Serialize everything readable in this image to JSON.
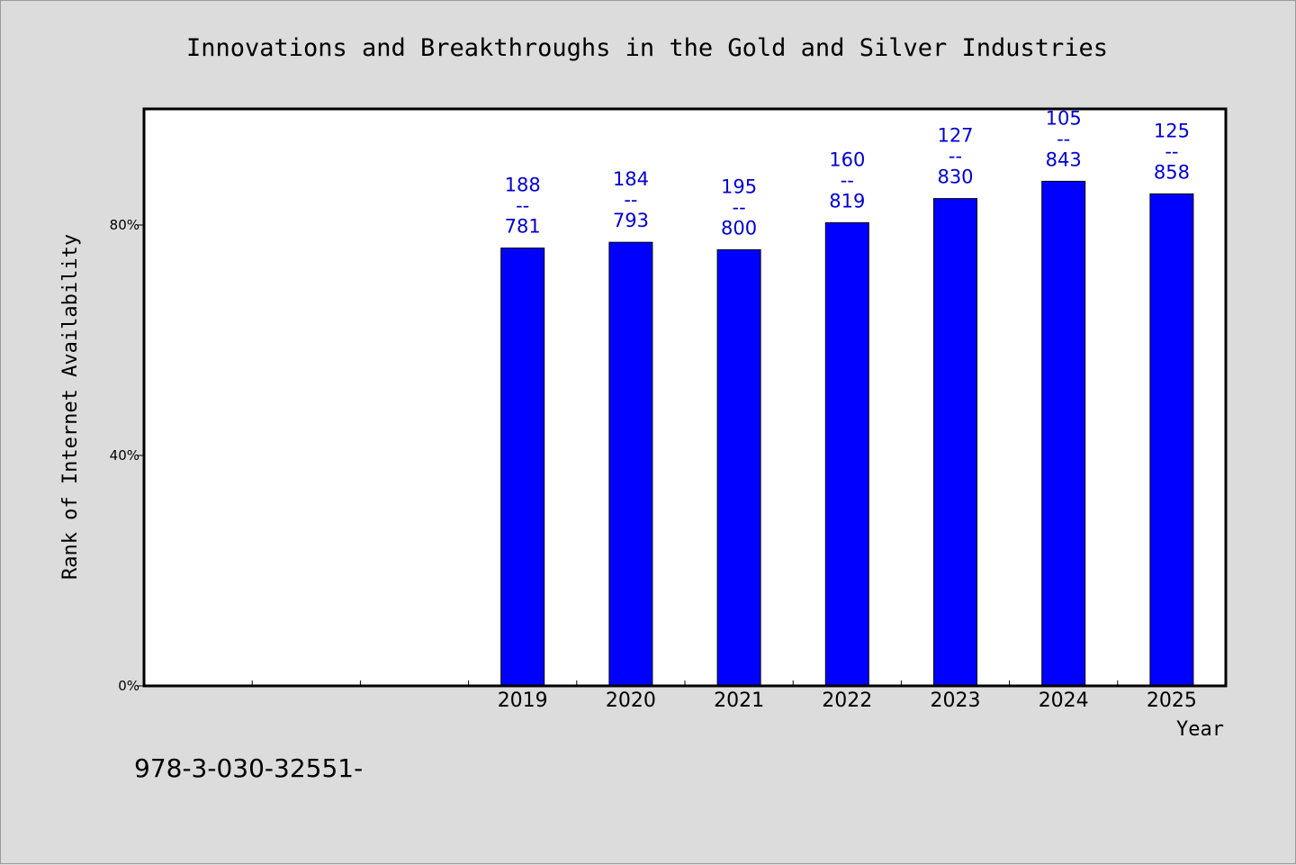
{
  "chart_data": {
    "type": "bar",
    "title": "Innovations and Breakthroughs in the Gold and Silver Industries",
    "xlabel": "Year",
    "ylabel": "Rank of Internet Availability",
    "categories": [
      "",
      "",
      "",
      "2019",
      "2020",
      "2021",
      "2022",
      "2023",
      "2024",
      "2025"
    ],
    "values": [
      null,
      null,
      null,
      76,
      77,
      75.7,
      80.4,
      84.6,
      87.6,
      85.4
    ],
    "labels_top": [
      "",
      "",
      "",
      "188",
      "184",
      "195",
      "160",
      "127",
      "105",
      "125"
    ],
    "labels_sep": "--",
    "labels_bottom": [
      "",
      "",
      "",
      "781",
      "793",
      "800",
      "819",
      "830",
      "843",
      "858"
    ],
    "ylim": [
      0,
      100
    ],
    "yticks": [
      {
        "value": 0,
        "label": "0%"
      },
      {
        "value": 40,
        "label": "40%"
      },
      {
        "value": 80,
        "label": "80%"
      }
    ],
    "bar_color": "#0000ff",
    "label_color": "#0000d0",
    "grid": false
  },
  "footnote": "978-3-030-32551-"
}
